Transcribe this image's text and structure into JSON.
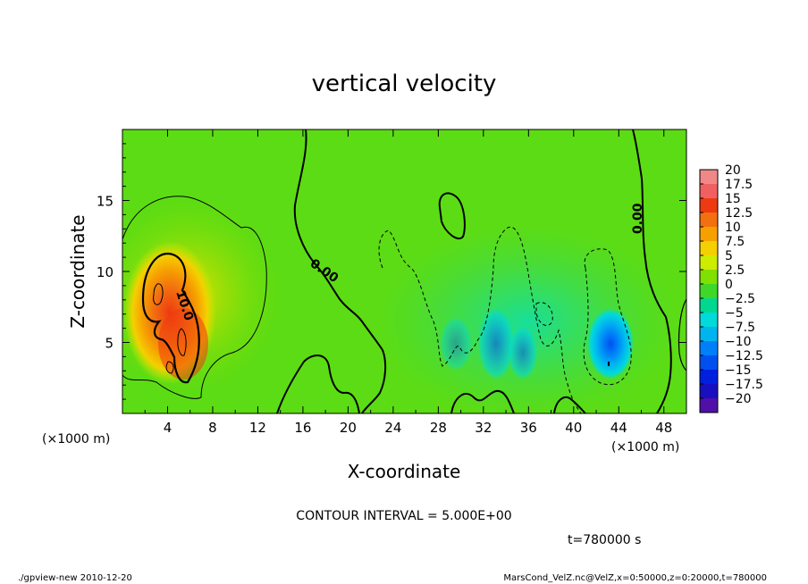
{
  "chart_data": {
    "type": "heatmap",
    "title": "vertical velocity",
    "xlabel": "X-coordinate",
    "ylabel": "Z-coordinate",
    "x_unit_label": "(×1000 m)",
    "y_unit_label": "(×1000 m)",
    "xlim": [
      0,
      50
    ],
    "ylim": [
      0,
      20
    ],
    "x_ticks": [
      4,
      8,
      12,
      16,
      20,
      24,
      28,
      32,
      36,
      40,
      44,
      48
    ],
    "y_ticks": [
      5,
      10,
      15
    ],
    "contour_interval_text": "CONTOUR INTERVAL = 5.000E+00",
    "time_text": "t=780000 s",
    "contour_labels": [
      "10.0",
      "0.00",
      "0.00"
    ],
    "colorbar": {
      "labels": [
        "20",
        "17.5",
        "15",
        "12.5",
        "10",
        "7.5",
        "5",
        "2.5",
        "0",
        "−2.5",
        "−5",
        "−7.5",
        "−10",
        "−12.5",
        "−15",
        "−17.5",
        "−20"
      ],
      "colors": [
        "#f08888",
        "#f06060",
        "#ee3a10",
        "#f27010",
        "#f6a000",
        "#f4d000",
        "#ccec00",
        "#80e000",
        "#40d828",
        "#00d890",
        "#00dada",
        "#00b4f0",
        "#0080f8",
        "#0050f0",
        "#0020e0",
        "#1810c0",
        "#5010a8"
      ]
    },
    "features": [
      {
        "kind": "updraft",
        "x": 4.5,
        "z": 7.0,
        "peak": 14
      },
      {
        "kind": "downdraft",
        "x": 43.0,
        "z": 4.0,
        "peak": -10
      }
    ]
  },
  "footer": {
    "left": "./gpview-new  2010-12-20",
    "right": "MarsCond_VelZ.nc@VelZ,x=0:50000,z=0:20000,t=780000"
  },
  "colors": {
    "background_field": "#5cdc14"
  }
}
